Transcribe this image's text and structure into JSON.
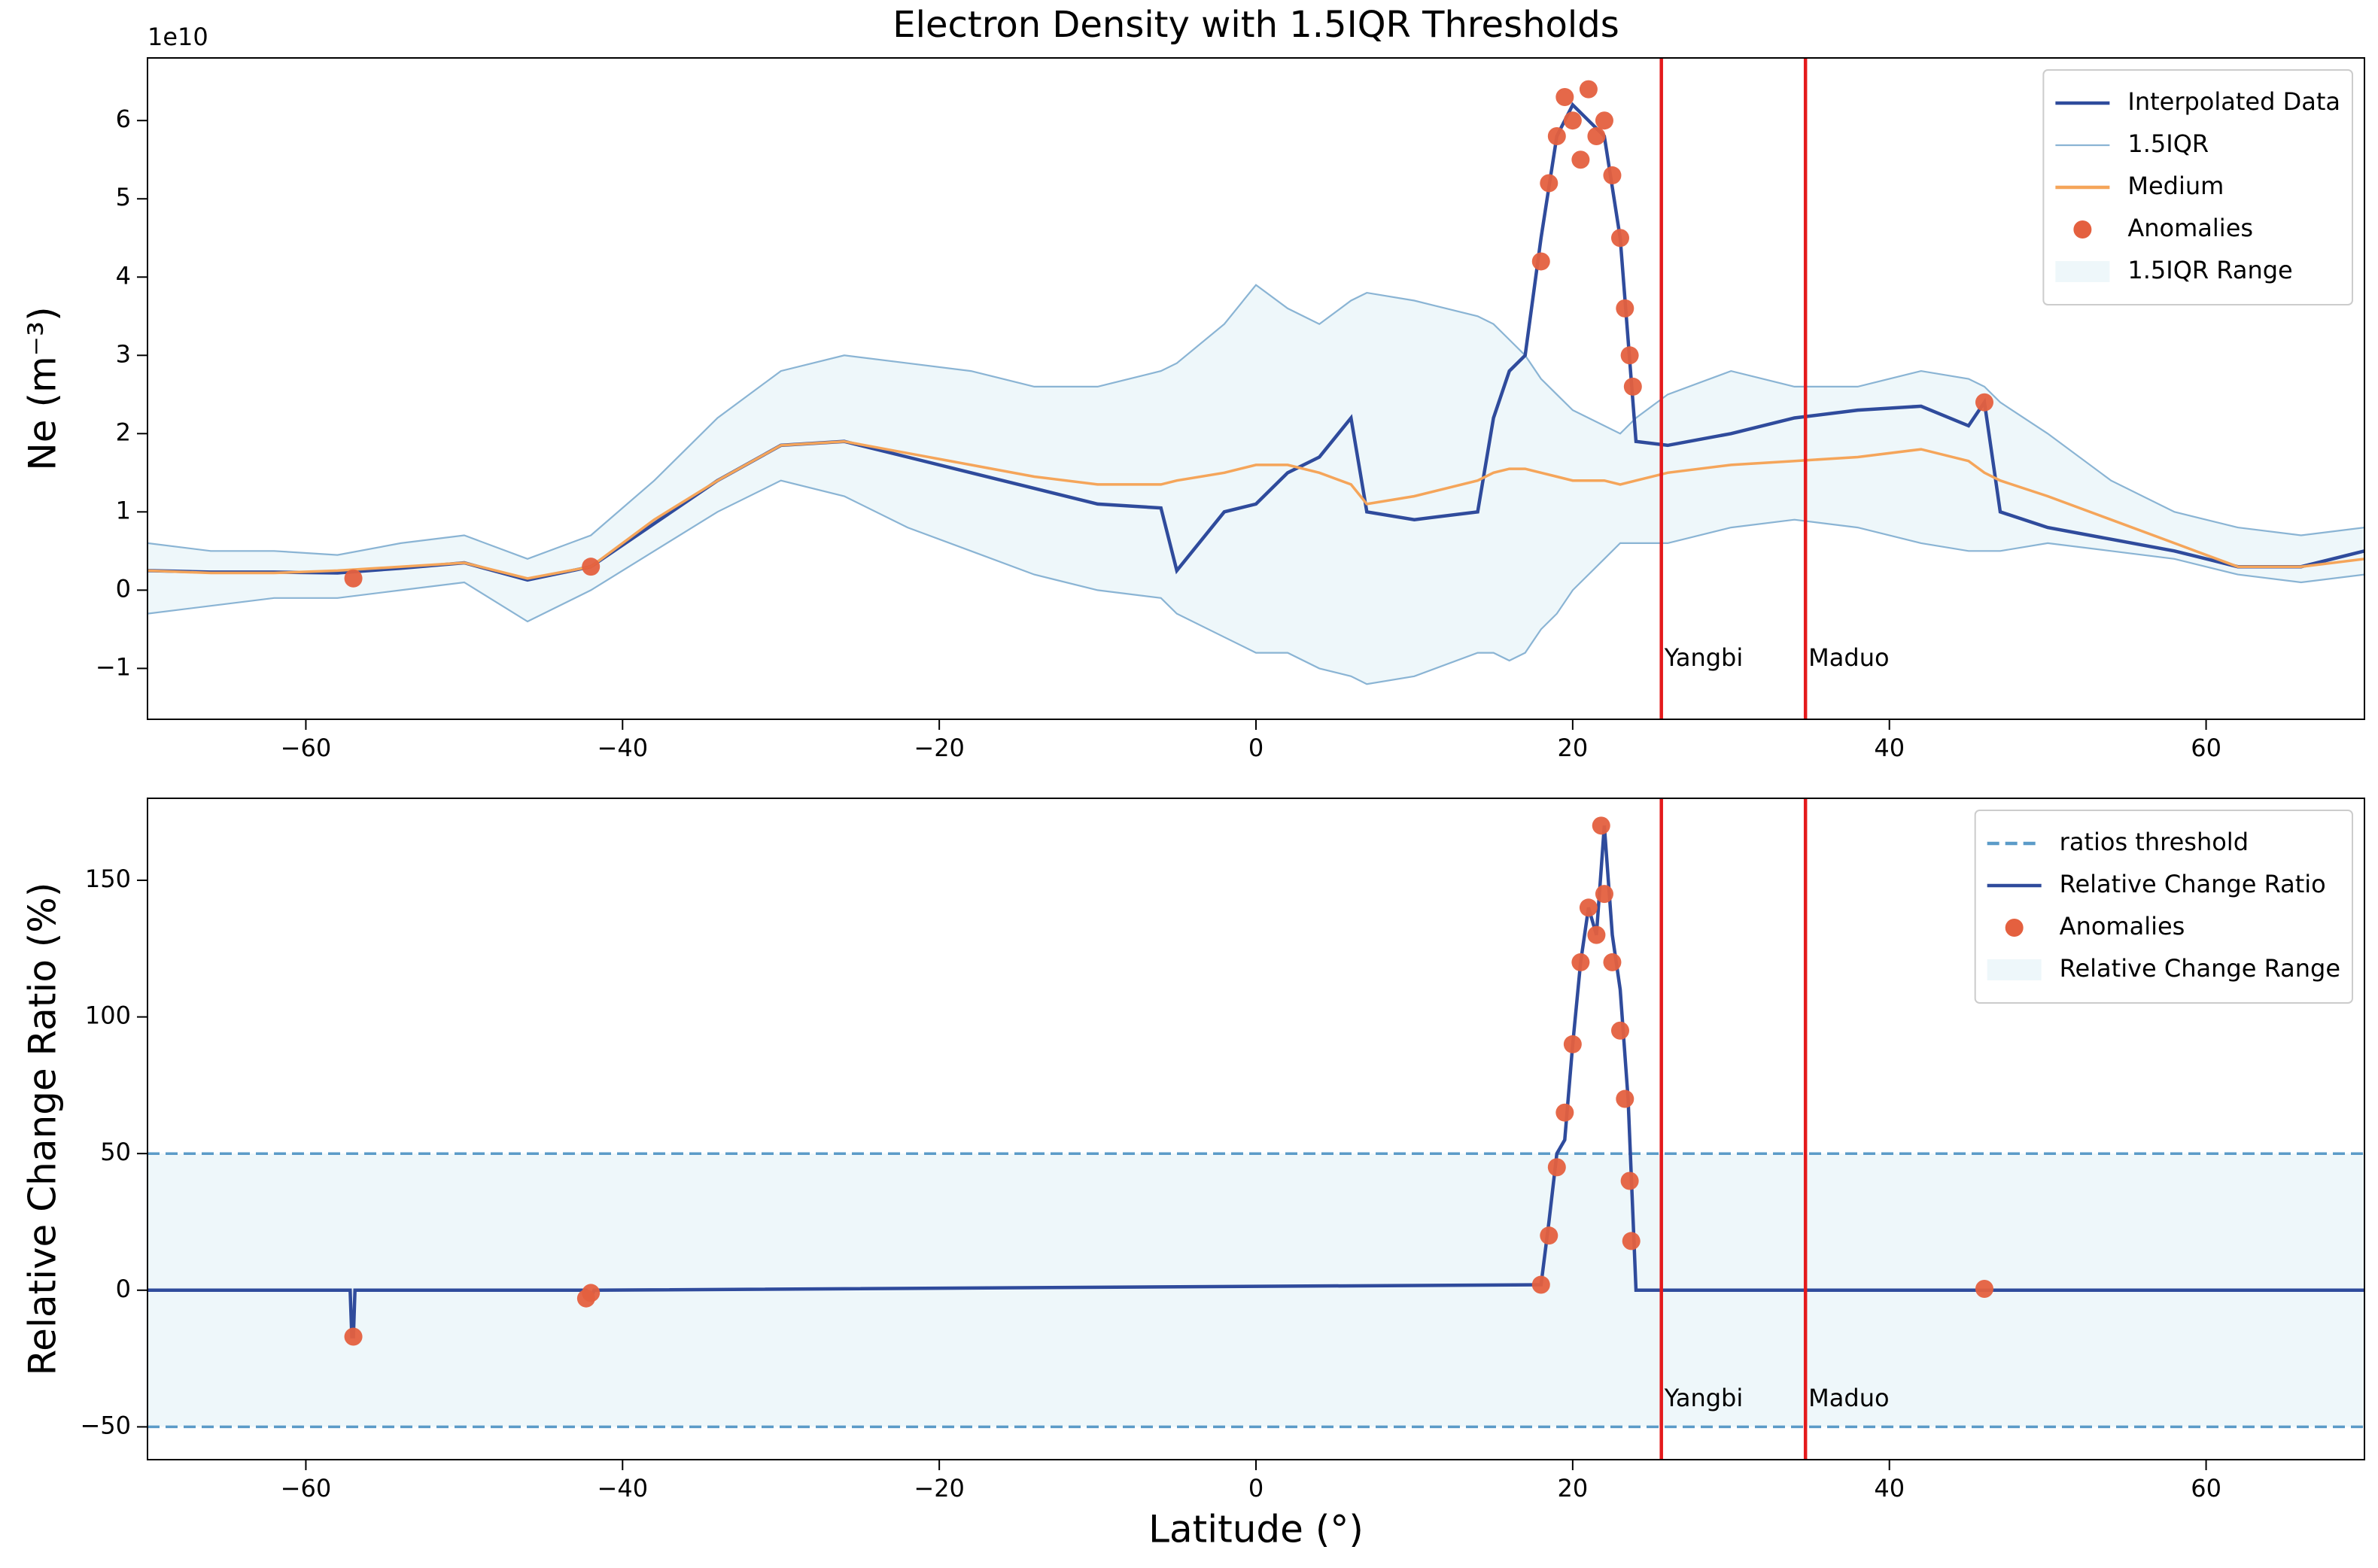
{
  "chart_data": [
    {
      "type": "line",
      "title": "Electron Density with 1.5IQR Thresholds",
      "ylabel": "Ne (m⁻³)",
      "y_offset_label": "1e10",
      "xlim": [
        -70,
        70
      ],
      "ylim": [
        -1.65,
        6.8
      ],
      "xticks": [
        {
          "value": -60,
          "label": "−60"
        },
        {
          "value": -40,
          "label": "−40"
        },
        {
          "value": -20,
          "label": "−20"
        },
        0,
        20,
        40,
        60
      ],
      "yticks": [
        {
          "value": -1,
          "label": "−1"
        },
        0,
        1,
        2,
        3,
        4,
        5,
        6
      ],
      "legend": "upper right",
      "x": [
        -70,
        -66,
        -62,
        -58,
        -54,
        -50,
        -46,
        -42,
        -38,
        -34,
        -30,
        -26,
        -22,
        -18,
        -14,
        -10,
        -6,
        -5,
        -2,
        0,
        2,
        4,
        6,
        7,
        10,
        14,
        15,
        16,
        17,
        18,
        19,
        20,
        21,
        22,
        23,
        24,
        26,
        30,
        34,
        38,
        42,
        45,
        46,
        47,
        50,
        54,
        58,
        62,
        66,
        70
      ],
      "layers": [
        {
          "kind": "line",
          "name": "Interpolated Data",
          "color": "#2f4b9c",
          "values": [
            0.25,
            0.23,
            0.23,
            0.22,
            0.28,
            0.35,
            0.13,
            0.3,
            0.85,
            1.4,
            1.85,
            1.9,
            1.7,
            1.5,
            1.3,
            1.1,
            1.05,
            0.25,
            1.0,
            1.1,
            1.5,
            1.7,
            2.2,
            1.0,
            0.9,
            1.0,
            2.2,
            2.8,
            3.0,
            4.5,
            5.8,
            6.2,
            6.0,
            5.8,
            4.5,
            1.9,
            1.85,
            2.0,
            2.2,
            2.3,
            2.35,
            2.1,
            2.4,
            1.0,
            0.8,
            0.65,
            0.5,
            0.3,
            0.3,
            0.5
          ]
        },
        {
          "kind": "bounds",
          "name": "1.5IQR",
          "color": "#8ab4d4",
          "upper": [
            0.6,
            0.5,
            0.5,
            0.45,
            0.6,
            0.7,
            0.4,
            0.7,
            1.4,
            2.2,
            2.8,
            3.0,
            2.9,
            2.8,
            2.6,
            2.6,
            2.8,
            2.9,
            3.4,
            3.9,
            3.6,
            3.4,
            3.7,
            3.8,
            3.7,
            3.5,
            3.4,
            3.2,
            3.0,
            2.7,
            2.5,
            2.3,
            2.2,
            2.1,
            2.0,
            2.2,
            2.5,
            2.8,
            2.6,
            2.6,
            2.8,
            2.7,
            2.6,
            2.4,
            2.0,
            1.4,
            1.0,
            0.8,
            0.7,
            0.8
          ],
          "lower": [
            -0.3,
            -0.2,
            -0.1,
            -0.1,
            0.0,
            0.1,
            -0.4,
            0.0,
            0.5,
            1.0,
            1.4,
            1.2,
            0.8,
            0.5,
            0.2,
            0.0,
            -0.1,
            -0.3,
            -0.6,
            -0.8,
            -0.8,
            -1.0,
            -1.1,
            -1.2,
            -1.1,
            -0.8,
            -0.8,
            -0.9,
            -0.8,
            -0.5,
            -0.3,
            0.0,
            0.2,
            0.4,
            0.6,
            0.6,
            0.6,
            0.8,
            0.9,
            0.8,
            0.6,
            0.5,
            0.5,
            0.5,
            0.6,
            0.5,
            0.4,
            0.2,
            0.1,
            0.2
          ]
        },
        {
          "kind": "line",
          "name": "Medium",
          "color": "#f5a55a",
          "values": [
            0.25,
            0.22,
            0.22,
            0.25,
            0.3,
            0.35,
            0.15,
            0.3,
            0.9,
            1.4,
            1.85,
            1.9,
            1.75,
            1.6,
            1.45,
            1.35,
            1.35,
            1.4,
            1.5,
            1.6,
            1.6,
            1.5,
            1.35,
            1.1,
            1.2,
            1.4,
            1.5,
            1.55,
            1.55,
            1.5,
            1.45,
            1.4,
            1.4,
            1.4,
            1.35,
            1.4,
            1.5,
            1.6,
            1.65,
            1.7,
            1.8,
            1.65,
            1.5,
            1.4,
            1.2,
            0.9,
            0.6,
            0.3,
            0.3,
            0.4
          ]
        },
        {
          "kind": "scatter",
          "name": "Anomalies",
          "color": "#e4603f",
          "x": [
            -57,
            -42,
            18,
            18.5,
            19,
            19.5,
            20,
            20.5,
            21,
            21.5,
            22,
            22.5,
            23,
            23.3,
            23.6,
            23.8,
            46
          ],
          "y": [
            0.15,
            0.3,
            4.2,
            5.2,
            5.8,
            6.3,
            6.0,
            5.5,
            6.4,
            5.8,
            6.0,
            5.3,
            4.5,
            3.6,
            3.0,
            2.6,
            2.4
          ]
        },
        {
          "kind": "band",
          "name": "1.5IQR Range",
          "color": "#eef7fa"
        }
      ],
      "events": [
        {
          "label": "Yangbi",
          "x": 25.6,
          "color": "#e41a1c"
        },
        {
          "label": "Maduo",
          "x": 34.7,
          "color": "#e41a1c"
        }
      ]
    },
    {
      "type": "line",
      "ylabel": "Relative Change Ratio (%)",
      "xlabel": "Latitude (°)",
      "xlim": [
        -70,
        70
      ],
      "ylim": [
        -62,
        180
      ],
      "xticks": [
        {
          "value": -60,
          "label": "−60"
        },
        {
          "value": -40,
          "label": "−40"
        },
        {
          "value": -20,
          "label": "−20"
        },
        0,
        20,
        40,
        60
      ],
      "yticks": [
        {
          "value": -50,
          "label": "−50"
        },
        0,
        50,
        100,
        150
      ],
      "legend": "upper right",
      "x": [
        -70,
        -57.2,
        -57.1,
        -57,
        -56.9,
        -42.3,
        -42,
        -41.8,
        18,
        18.5,
        19,
        19.5,
        20,
        20.5,
        21,
        21.5,
        22,
        22.5,
        23,
        23.5,
        24,
        46,
        70
      ],
      "layers": [
        {
          "kind": "hlines",
          "name": "ratios threshold",
          "color": "#5b9bc8",
          "values": [
            50,
            -50
          ]
        },
        {
          "kind": "line",
          "name": "Relative Change Ratio",
          "color": "#2f4b9c",
          "values": [
            0,
            0,
            -17,
            -17,
            0,
            0,
            -3,
            0,
            2,
            25,
            50,
            55,
            90,
            120,
            140,
            130,
            170,
            130,
            110,
            70,
            0,
            0,
            0
          ]
        },
        {
          "kind": "scatter",
          "name": "Anomalies",
          "color": "#e4603f",
          "x": [
            -57,
            -42.3,
            -42,
            18,
            18.5,
            19,
            19.5,
            20,
            20.5,
            21,
            21.5,
            21.8,
            22,
            22.5,
            23,
            23.3,
            23.6,
            23.7,
            46
          ],
          "y": [
            -17,
            -3,
            -1,
            2,
            20,
            45,
            65,
            90,
            120,
            140,
            130,
            170,
            145,
            120,
            95,
            70,
            40,
            18,
            0.5
          ]
        },
        {
          "kind": "band",
          "name": "Relative Change Range",
          "color": "#eef7fa"
        }
      ],
      "events": [
        {
          "label": "Yangbi",
          "x": 25.6,
          "color": "#e41a1c"
        },
        {
          "label": "Maduo",
          "x": 34.7,
          "color": "#e41a1c"
        }
      ]
    }
  ]
}
